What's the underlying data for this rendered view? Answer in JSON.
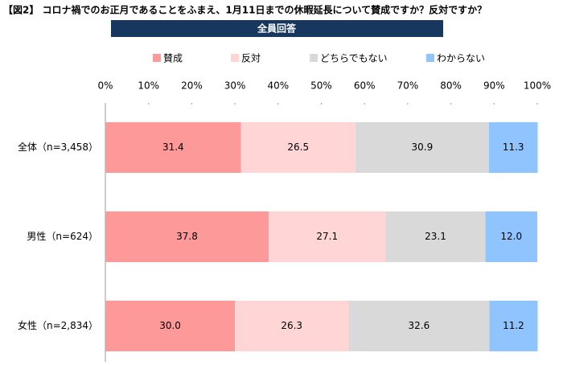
{
  "chart_data": {
    "type": "stacked-bar-horizontal",
    "title": "【図2】 コロナ禍でのお正月であることをふまえ、1月11日までの休暇延長について賛成ですか？反対ですか？",
    "subtitle": "全員回答",
    "categories": [
      "全体（n=3,458）",
      "男性（n=624）",
      "女性（n=2,834）"
    ],
    "series": [
      {
        "name": "賛成",
        "color": "#fe9999",
        "values": [
          31.4,
          37.8,
          30.0
        ]
      },
      {
        "name": "反対",
        "color": "#ffd5d5",
        "values": [
          26.5,
          27.1,
          26.3
        ]
      },
      {
        "name": "どちらでもない",
        "color": "#d9d9d9",
        "values": [
          30.9,
          23.1,
          32.6
        ]
      },
      {
        "name": "わからない",
        "color": "#8fc4ff",
        "values": [
          11.3,
          12.0,
          11.2
        ]
      }
    ],
    "value_labels": [
      [
        "31.4",
        "37.8",
        "30.0"
      ],
      [
        "26.5",
        "27.1",
        "26.3"
      ],
      [
        "30.9",
        "23.1",
        "32.6"
      ],
      [
        "11.3",
        "12.0",
        "11.2"
      ]
    ],
    "xlim": [
      0,
      100
    ],
    "xticks": [
      {
        "value": 0,
        "label": "0%"
      },
      {
        "value": 10,
        "label": "10%"
      },
      {
        "value": 20,
        "label": "20%"
      },
      {
        "value": 30,
        "label": "30%"
      },
      {
        "value": 40,
        "label": "40%"
      },
      {
        "value": 50,
        "label": "50%"
      },
      {
        "value": 60,
        "label": "60%"
      },
      {
        "value": 70,
        "label": "70%"
      },
      {
        "value": 80,
        "label": "80%"
      },
      {
        "value": 90,
        "label": "90%"
      },
      {
        "value": 100,
        "label": "100%"
      }
    ],
    "grid": false,
    "legend": "top"
  }
}
